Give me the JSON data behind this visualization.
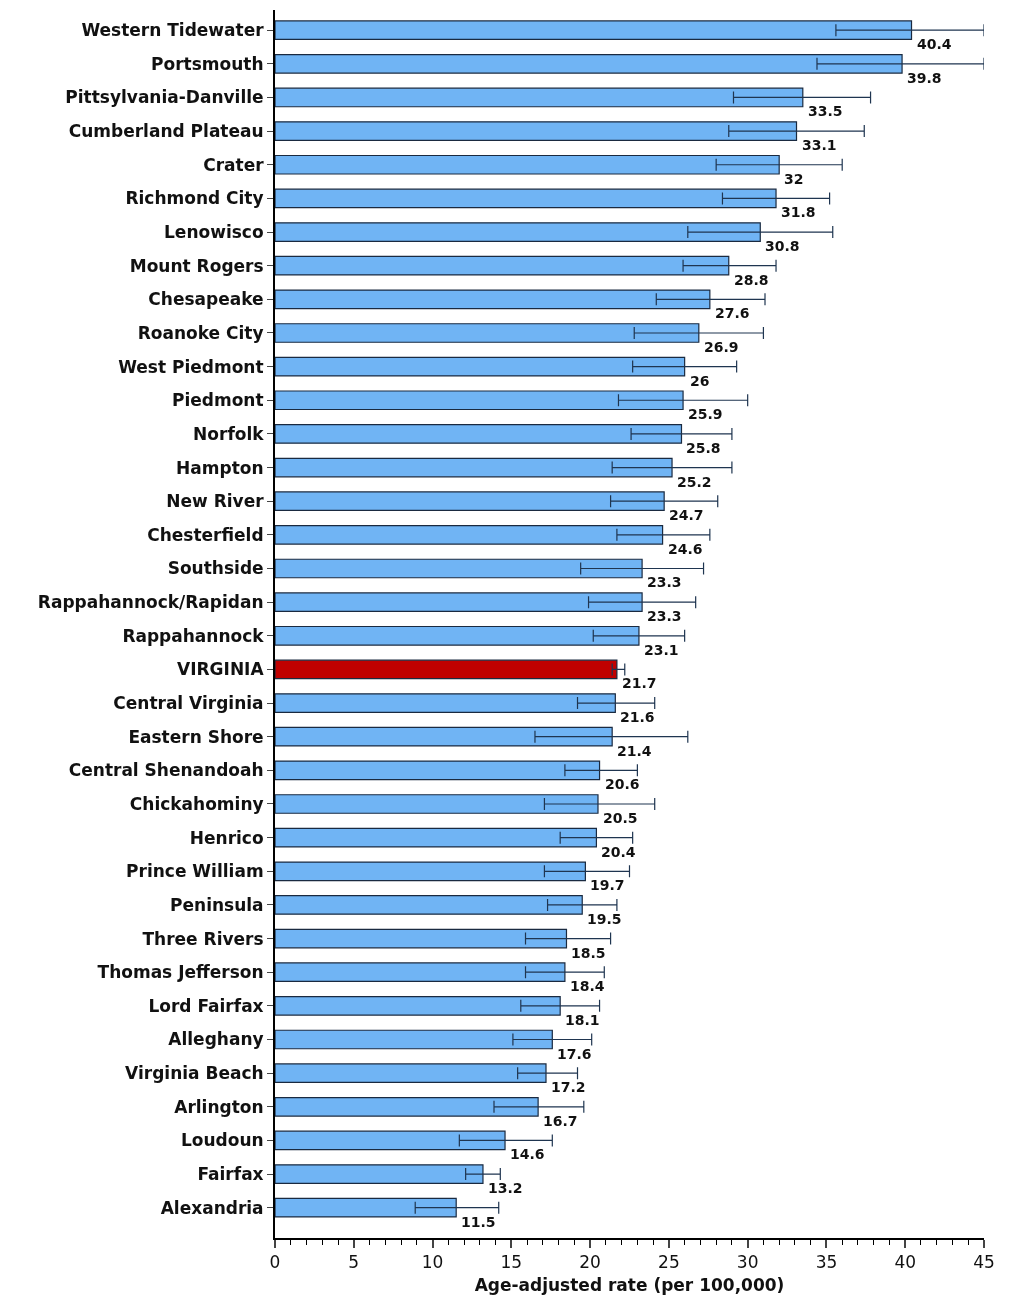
{
  "chart_data": {
    "type": "bar",
    "orientation": "horizontal",
    "xlabel": "Age-adjusted rate (per 100,000)",
    "categories": [
      "Western Tidewater",
      "Portsmouth",
      "Pittsylvania-Danville",
      "Cumberland Plateau",
      "Crater",
      "Richmond City",
      "Lenowisco",
      "Mount Rogers",
      "Chesapeake",
      "Roanoke City",
      "West Piedmont",
      "Piedmont",
      "Norfolk",
      "Hampton",
      "New River",
      "Chesterfield",
      "Southside",
      "Rappahannock/Rapidan",
      "Rappahannock",
      "VIRGINIA",
      "Central Virginia",
      "Eastern Shore",
      "Central Shenandoah",
      "Chickahominy",
      "Henrico",
      "Prince William",
      "Peninsula",
      "Three Rivers",
      "Thomas Jefferson",
      "Lord Fairfax",
      "Alleghany",
      "Virginia Beach",
      "Arlington",
      "Loudoun",
      "Fairfax",
      "Alexandria"
    ],
    "values": [
      40.4,
      39.8,
      33.5,
      33.1,
      32,
      31.8,
      30.8,
      28.8,
      27.6,
      26.9,
      26,
      25.9,
      25.8,
      25.2,
      24.7,
      24.6,
      23.3,
      23.3,
      23.1,
      21.7,
      21.6,
      21.4,
      20.6,
      20.5,
      20.4,
      19.7,
      19.5,
      18.5,
      18.4,
      18.1,
      17.6,
      17.2,
      16.7,
      14.6,
      13.2,
      11.5
    ],
    "errors": [
      [
        35.6,
        45.0
      ],
      [
        34.4,
        45.0
      ],
      [
        29.1,
        37.8
      ],
      [
        28.8,
        37.4
      ],
      [
        28.0,
        36.0
      ],
      [
        28.4,
        35.2
      ],
      [
        26.2,
        35.4
      ],
      [
        25.9,
        31.8
      ],
      [
        24.2,
        31.1
      ],
      [
        22.8,
        31.0
      ],
      [
        22.7,
        29.3
      ],
      [
        21.8,
        30.0
      ],
      [
        22.6,
        29.0
      ],
      [
        21.4,
        29.0
      ],
      [
        21.3,
        28.1
      ],
      [
        21.7,
        27.6
      ],
      [
        19.4,
        27.2
      ],
      [
        19.9,
        26.7
      ],
      [
        20.2,
        26.0
      ],
      [
        21.4,
        22.2
      ],
      [
        19.2,
        24.1
      ],
      [
        16.5,
        26.2
      ],
      [
        18.4,
        23.0
      ],
      [
        17.1,
        24.1
      ],
      [
        18.1,
        22.7
      ],
      [
        17.1,
        22.5
      ],
      [
        17.3,
        21.7
      ],
      [
        15.9,
        21.3
      ],
      [
        15.9,
        20.9
      ],
      [
        15.6,
        20.6
      ],
      [
        15.1,
        20.1
      ],
      [
        15.4,
        19.2
      ],
      [
        13.9,
        19.6
      ],
      [
        11.7,
        17.6
      ],
      [
        12.1,
        14.3
      ],
      [
        8.9,
        14.2
      ]
    ],
    "colors": [
      "#70b4f4",
      "#70b4f4",
      "#70b4f4",
      "#70b4f4",
      "#70b4f4",
      "#70b4f4",
      "#70b4f4",
      "#70b4f4",
      "#70b4f4",
      "#70b4f4",
      "#70b4f4",
      "#70b4f4",
      "#70b4f4",
      "#70b4f4",
      "#70b4f4",
      "#70b4f4",
      "#70b4f4",
      "#70b4f4",
      "#70b4f4",
      "#c00000",
      "#70b4f4",
      "#70b4f4",
      "#70b4f4",
      "#70b4f4",
      "#70b4f4",
      "#70b4f4",
      "#70b4f4",
      "#70b4f4",
      "#70b4f4",
      "#70b4f4",
      "#70b4f4",
      "#70b4f4",
      "#70b4f4",
      "#70b4f4",
      "#70b4f4",
      "#70b4f4"
    ],
    "xlim": [
      0,
      45
    ],
    "xticks": [
      0,
      5,
      10,
      15,
      20,
      25,
      30,
      35,
      40,
      45
    ],
    "data_labels": true
  }
}
